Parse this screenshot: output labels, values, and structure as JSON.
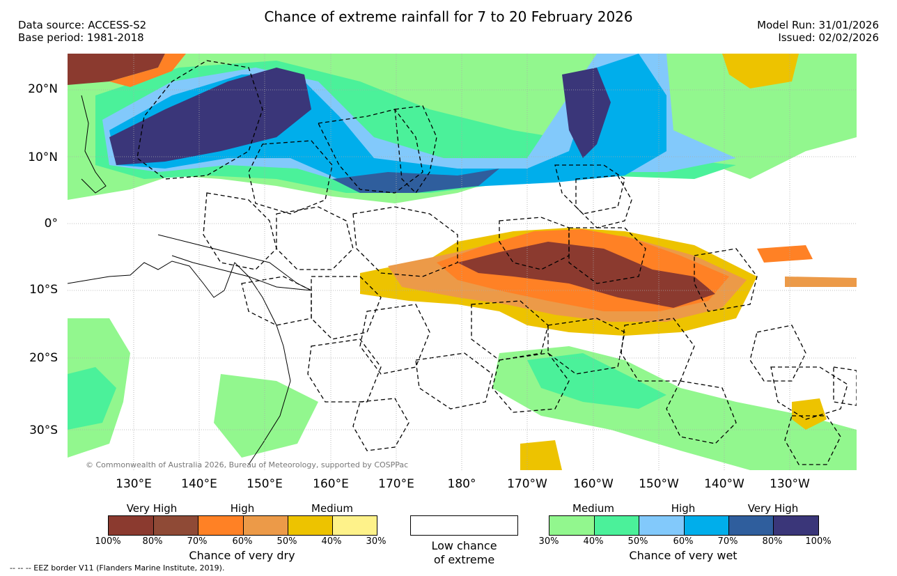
{
  "title": "Chance of extreme rainfall for 7 to 20 February 2026",
  "meta_left": [
    "Data source: ACCESS-S2",
    "Base period: 1981-2018"
  ],
  "meta_right": [
    "Model Run: 31/01/2026",
    "Issued: 02/02/2026"
  ],
  "lat_labels": [
    "20°N",
    "10°N",
    "0°",
    "10°S",
    "20°S",
    "30°S"
  ],
  "lon_labels": [
    "130°E",
    "140°E",
    "150°E",
    "160°E",
    "170°E",
    "180°",
    "170°W",
    "160°W",
    "150°W",
    "140°W",
    "130°W"
  ],
  "copyright": "© Commonwealth of Australia 2026, Bureau of Meteorology, supported by COSPPac",
  "legend_dry": {
    "categories": [
      "Very High",
      "High",
      "Medium"
    ],
    "ticks": [
      "100%",
      "80%",
      "70%",
      "60%",
      "50%",
      "40%",
      "30%"
    ],
    "colors": [
      "#8B3A2F",
      "#8F4A36",
      "#FF8125",
      "#EC9A48",
      "#EDC300",
      "#FEF28A"
    ],
    "caption": "Chance of very dry"
  },
  "legend_low": {
    "caption_line1": "Low chance",
    "caption_line2": "of extreme"
  },
  "legend_wet": {
    "categories": [
      "Medium",
      "High",
      "Very High"
    ],
    "ticks": [
      "30%",
      "40%",
      "50%",
      "60%",
      "70%",
      "80%",
      "100%"
    ],
    "colors": [
      "#92F78E",
      "#4BF19A",
      "#82C9FB",
      "#00AEEB",
      "#2F5E9D",
      "#3A3679"
    ],
    "caption": "Chance of very wet"
  },
  "footnote": "-- -- -- EEZ border V11 (Flanders Marine Institute, 2019)."
}
